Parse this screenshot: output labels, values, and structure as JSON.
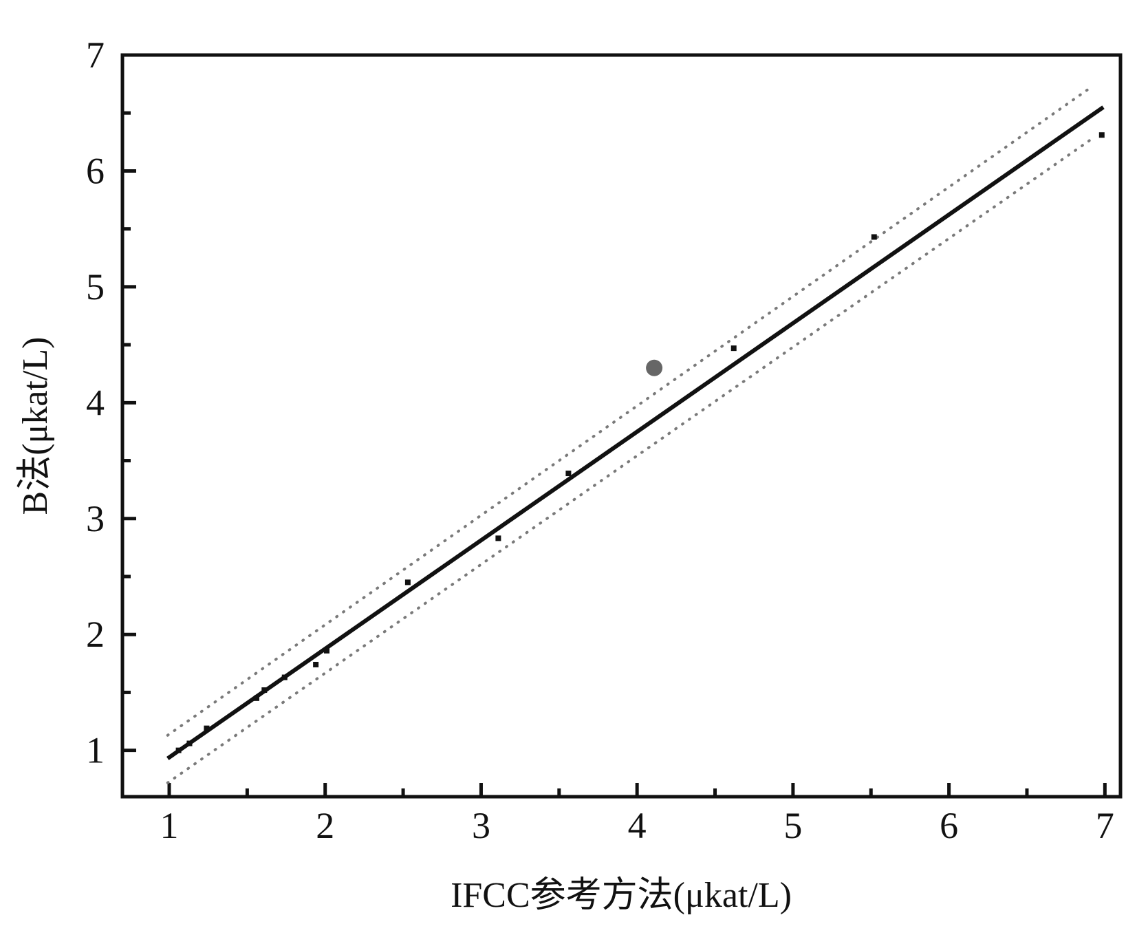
{
  "chart_data": {
    "type": "scatter",
    "x_label": "IFCC参考方法(μkat/L)",
    "y_label": "B法(μkat/L)",
    "xlim": [
      0.7,
      7.1
    ],
    "ylim": [
      0.6,
      7
    ],
    "xticks": [
      1,
      2,
      3,
      4,
      5,
      6,
      7
    ],
    "yticks": [
      1,
      2,
      3,
      4,
      5,
      6,
      7
    ],
    "xminorticks": [
      1.5,
      2.5,
      3.5,
      4.5,
      5.5,
      6.5
    ],
    "yminorticks": [
      1.5,
      2.5,
      3.5,
      4.5,
      5.5,
      6.5
    ],
    "grid": false,
    "series": [
      {
        "color": "#111111",
        "marker": "square",
        "x": [
          1.06,
          1.13,
          1.24,
          1.56,
          1.61,
          1.74,
          1.94,
          2.01,
          2.53,
          3.11,
          3.56,
          4.62,
          5.52,
          6.98
        ],
        "values": [
          1.0,
          1.06,
          1.19,
          1.45,
          1.52,
          1.63,
          1.74,
          1.86,
          2.45,
          2.83,
          3.39,
          4.47,
          5.43,
          6.31
        ]
      },
      {
        "color": "#666666",
        "marker": "circle",
        "x": [
          4.11
        ],
        "values": [
          4.3
        ]
      }
    ],
    "lines": [
      {
        "color": "#111111",
        "style": "solid",
        "x": [
          0.99,
          6.99
        ],
        "values": [
          0.93,
          6.55
        ]
      },
      {
        "color": "#7a7a7a",
        "style": "dotted",
        "x": [
          0.99,
          6.92
        ],
        "values": [
          1.13,
          6.73
        ]
      },
      {
        "color": "#7a7a7a",
        "style": "dotted",
        "x": [
          0.99,
          6.92
        ],
        "values": [
          0.72,
          6.28
        ]
      }
    ]
  }
}
